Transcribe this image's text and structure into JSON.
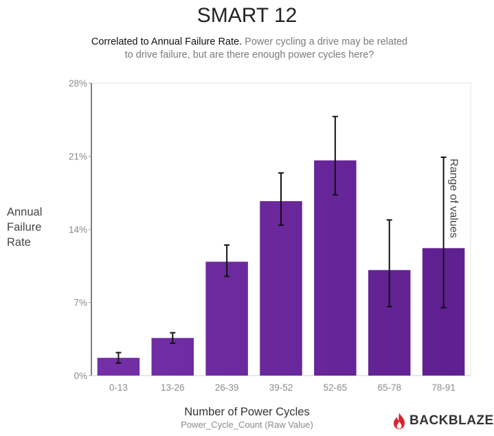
{
  "chart_data": {
    "type": "bar",
    "title": "SMART 12",
    "subtitle_lead": "Correlated to Annual Failure Rate.",
    "subtitle_rest": "Power cycling a drive may be related to drive failure, but are there enough power cycles here?",
    "ylabel_lines": [
      "Annual",
      "Failure",
      "Rate"
    ],
    "xlabel": "Number of Power Cycles",
    "xsublabel": "Power_Cycle_Count (Raw Value)",
    "annotation": "Range of values",
    "ylim": [
      0,
      28
    ],
    "yticks": [
      0,
      7,
      14,
      21,
      28
    ],
    "ytick_labels": [
      "0%",
      "7%",
      "14%",
      "21%",
      "28%"
    ],
    "categories": [
      "0-13",
      "13-26",
      "26-39",
      "39-52",
      "52-65",
      "65-78",
      "78-91"
    ],
    "values": [
      1.7,
      3.6,
      10.9,
      16.7,
      20.6,
      10.1,
      12.2
    ],
    "error_low": [
      1.2,
      3.1,
      9.5,
      14.4,
      17.3,
      6.6,
      6.5
    ],
    "error_high": [
      2.2,
      4.1,
      12.5,
      19.4,
      24.8,
      14.9,
      20.9
    ],
    "grid": false,
    "bar_color": "#7530a8",
    "bar_color_dark": "#5e1f8f"
  },
  "brand": {
    "name": "BACKBLAZE",
    "flame_color": "#d9232e",
    "icon": "flame-icon"
  }
}
